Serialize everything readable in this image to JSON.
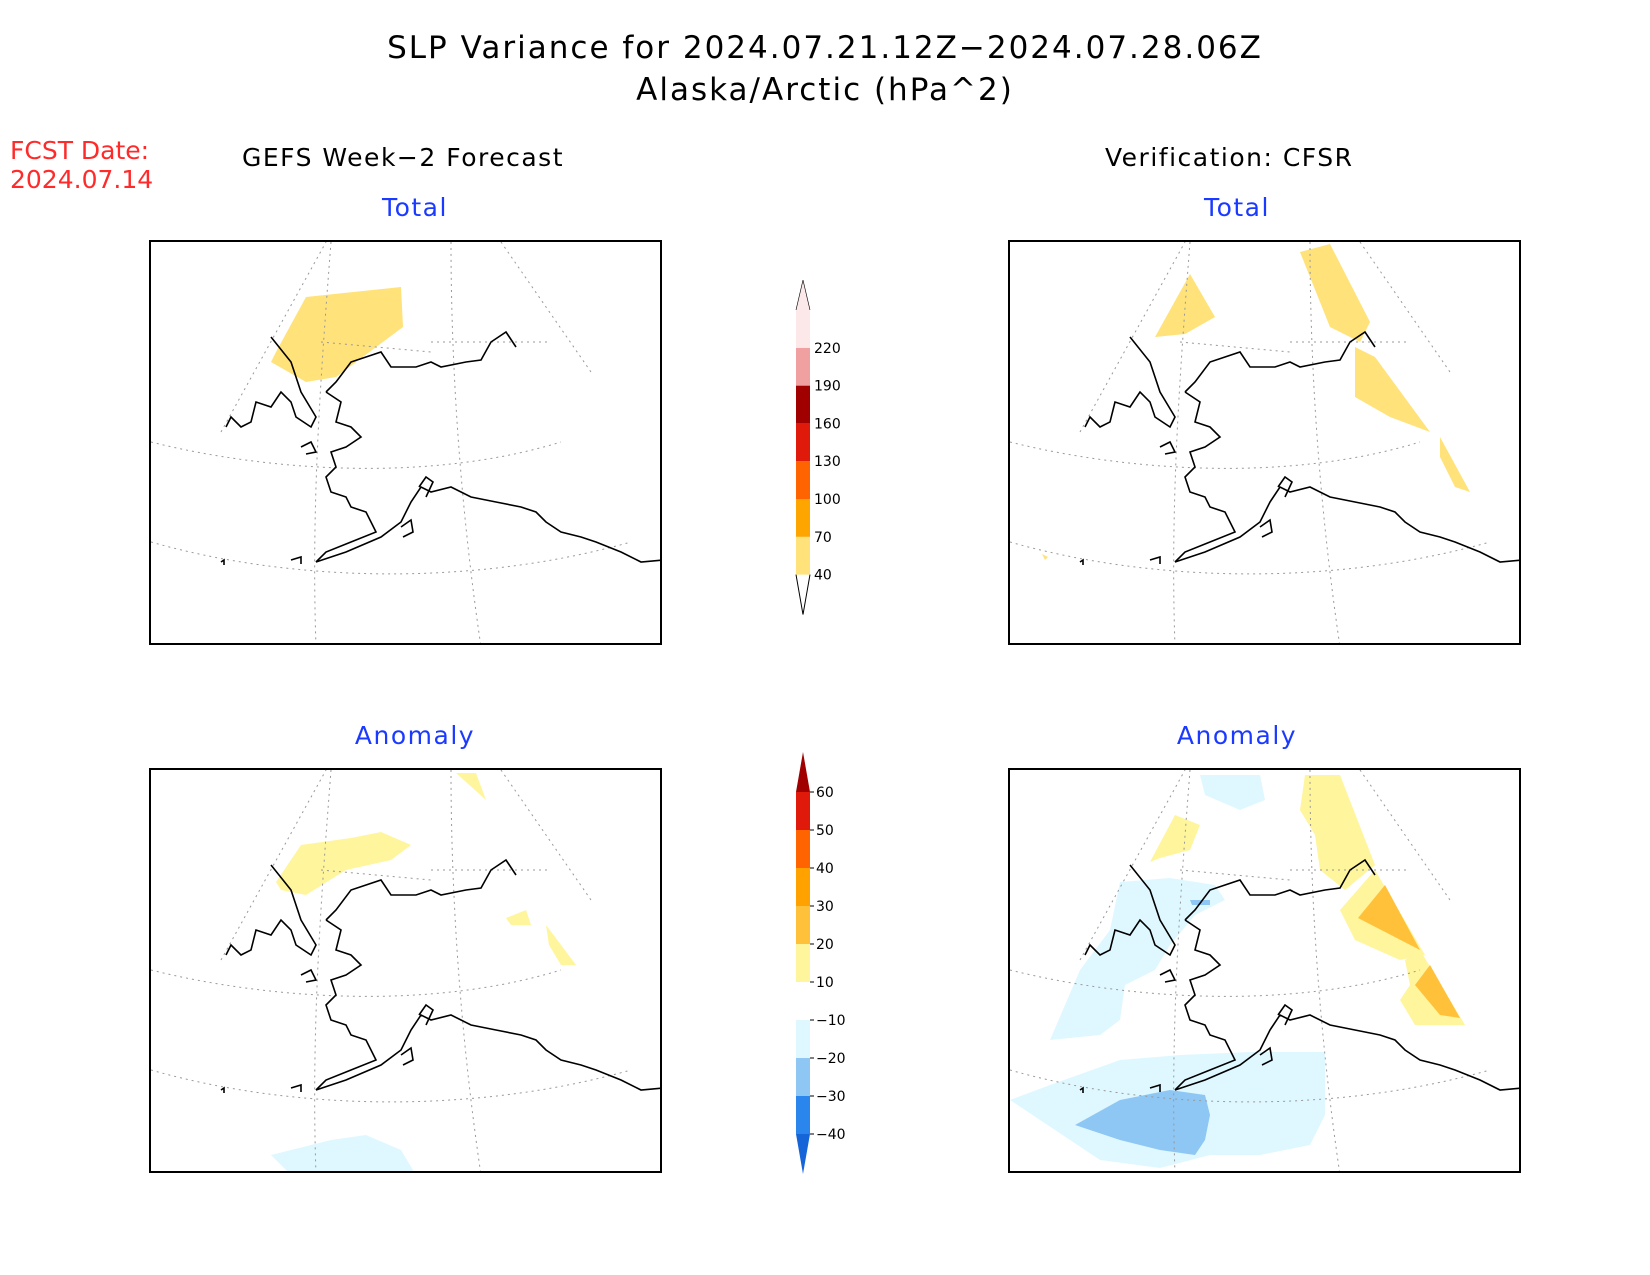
{
  "header": {
    "title_line1": "SLP Variance for 2024.07.21.12Z−2024.07.28.06Z",
    "title_line2": "Alaska/Arctic (hPa^2)",
    "fcst_label": "FCST Date:",
    "fcst_date": "2024.07.14"
  },
  "columns": {
    "left_title": "GEFS Week−2 Forecast",
    "right_title": "Verification: CFSR"
  },
  "panels": {
    "fc_total_label": "Total",
    "ver_total_label": "Total",
    "fc_anom_label": "Anomaly",
    "ver_anom_label": "Anomaly"
  },
  "colorbars": {
    "total": {
      "levels": [
        "40",
        "70",
        "100",
        "130",
        "160",
        "190",
        "220"
      ],
      "colors": [
        "#ffe27a",
        "#ffa500",
        "#ff6400",
        "#e01a0a",
        "#a00000",
        "#f0a0a0",
        "#fce8e8"
      ]
    },
    "anomaly": {
      "levels": [
        "-40",
        "-30",
        "-20",
        "-10",
        "10",
        "20",
        "30",
        "40",
        "50",
        "60"
      ],
      "colors": [
        "#1565d8",
        "#2a86ec",
        "#8ec6f4",
        "#dff8ff",
        "#ffffff",
        "#fff59c",
        "#ffc13a",
        "#ffa200",
        "#ff6400",
        "#e01a0a",
        "#a00000"
      ]
    }
  }
}
